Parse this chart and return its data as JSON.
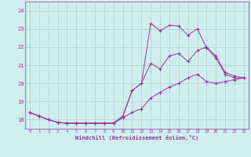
{
  "xlabel": "Windchill (Refroidissement éolien,°C)",
  "xlim": [
    -0.5,
    23.5
  ],
  "ylim": [
    17.5,
    24.5
  ],
  "yticks": [
    18,
    19,
    20,
    21,
    22,
    23,
    24
  ],
  "xticks": [
    0,
    1,
    2,
    3,
    4,
    5,
    6,
    7,
    8,
    9,
    10,
    11,
    12,
    13,
    14,
    15,
    16,
    17,
    18,
    19,
    20,
    21,
    22,
    23
  ],
  "bg_color": "#d0eef0",
  "line_color": "#993399",
  "grid_color": "#b0cccc",
  "line1_x": [
    0,
    1,
    2,
    3,
    4,
    5,
    6,
    7,
    8,
    9,
    10,
    11,
    12,
    13,
    14,
    15,
    16,
    17,
    18,
    19,
    20,
    21,
    22,
    23
  ],
  "line1_y": [
    18.4,
    18.2,
    18.0,
    17.85,
    17.8,
    17.8,
    17.8,
    17.8,
    17.8,
    17.8,
    18.2,
    19.6,
    20.0,
    23.3,
    22.9,
    23.2,
    23.15,
    22.65,
    23.0,
    21.95,
    21.4,
    20.5,
    20.3,
    20.3
  ],
  "line2_x": [
    0,
    1,
    2,
    3,
    4,
    5,
    6,
    7,
    8,
    9,
    10,
    11,
    12,
    13,
    14,
    15,
    16,
    17,
    18,
    19,
    20,
    21,
    22,
    23
  ],
  "line2_y": [
    18.4,
    18.2,
    18.0,
    17.85,
    17.8,
    17.8,
    17.8,
    17.8,
    17.8,
    17.8,
    18.2,
    19.6,
    20.0,
    21.1,
    20.8,
    21.5,
    21.65,
    21.2,
    21.8,
    22.0,
    21.5,
    20.6,
    20.4,
    20.3
  ],
  "line3_x": [
    0,
    1,
    2,
    3,
    4,
    5,
    6,
    7,
    8,
    9,
    10,
    11,
    12,
    13,
    14,
    15,
    16,
    17,
    18,
    19,
    20,
    21,
    22,
    23
  ],
  "line3_y": [
    18.4,
    18.2,
    18.0,
    17.85,
    17.8,
    17.8,
    17.8,
    17.8,
    17.8,
    17.8,
    18.1,
    18.4,
    18.6,
    19.2,
    19.5,
    19.8,
    20.0,
    20.3,
    20.5,
    20.1,
    20.0,
    20.1,
    20.2,
    20.3
  ]
}
